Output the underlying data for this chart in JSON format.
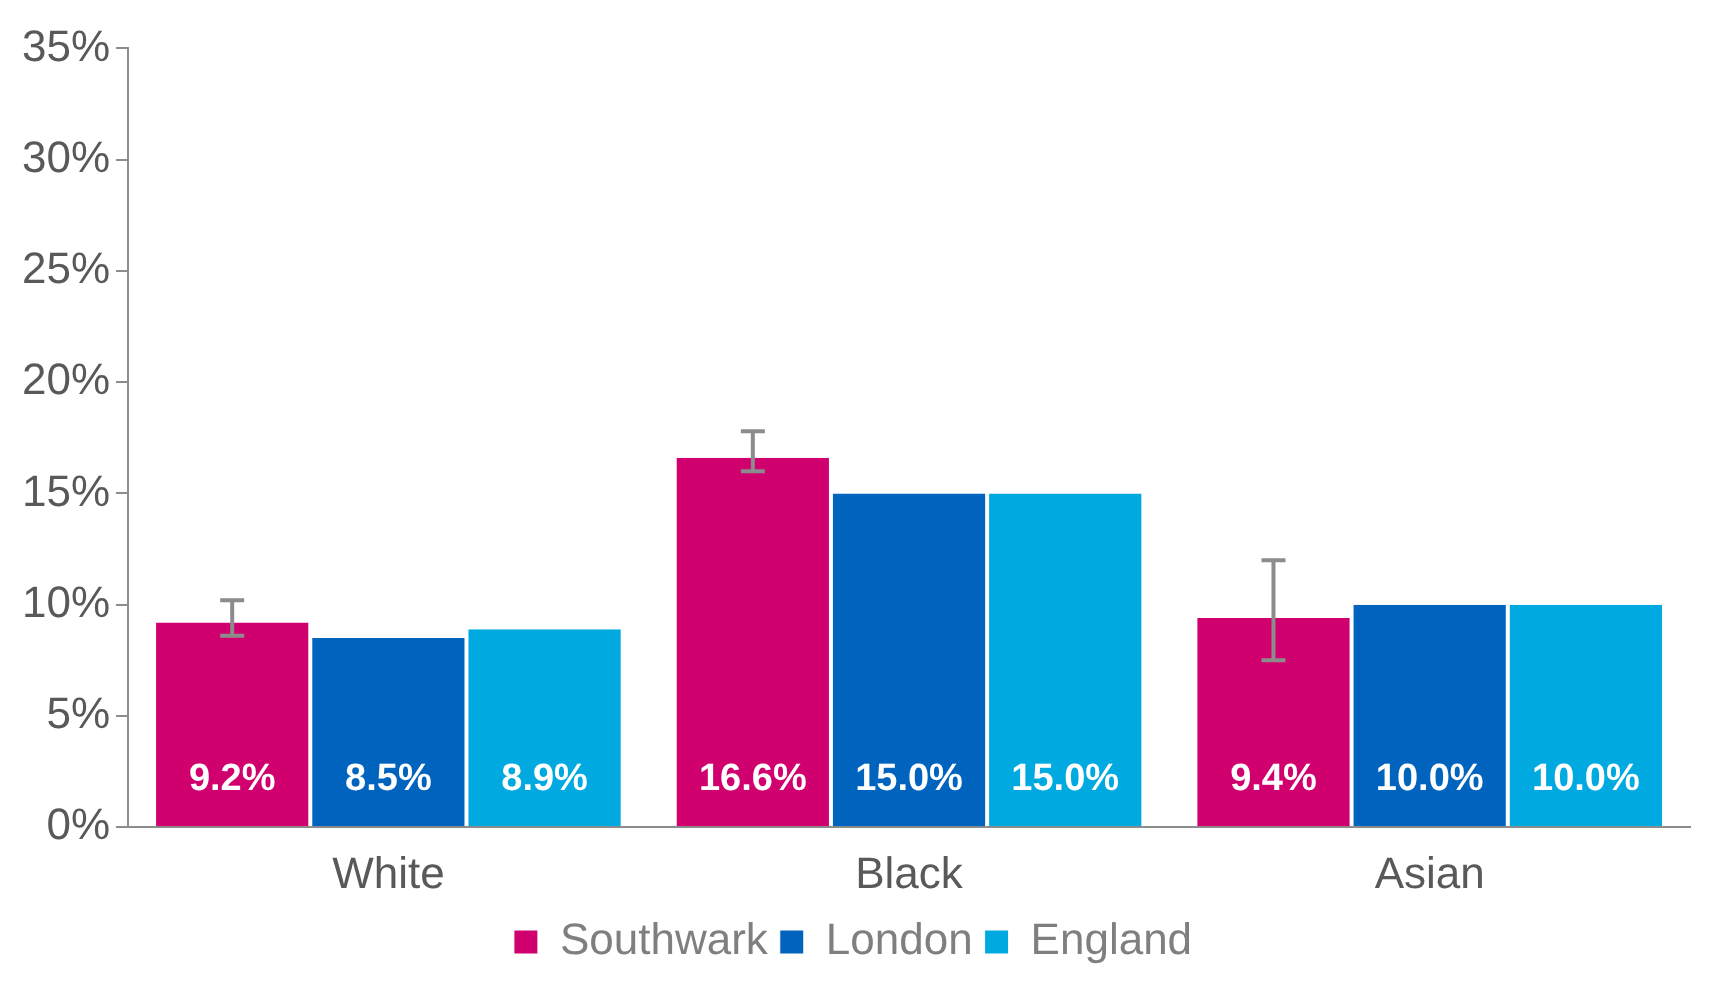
{
  "chart_data": {
    "type": "bar",
    "categories": [
      "White",
      "Black",
      "Asian"
    ],
    "series": [
      {
        "name": "Southwark",
        "color": "#d0006f",
        "values": [
          9.2,
          16.6,
          9.4
        ],
        "value_labels": [
          "9.2%",
          "16.6%",
          "9.4%"
        ],
        "errors": [
          [
            8.6,
            10.2
          ],
          [
            16.0,
            17.8
          ],
          [
            7.5,
            12.0
          ]
        ]
      },
      {
        "name": "London",
        "color": "#0063be",
        "values": [
          8.5,
          15.0,
          10.0
        ],
        "value_labels": [
          "8.5%",
          "15.0%",
          "10.0%"
        ]
      },
      {
        "name": "England",
        "color": "#00a9e0",
        "values": [
          8.9,
          15.0,
          10.0
        ],
        "value_labels": [
          "8.9%",
          "15.0%",
          "10.0%"
        ]
      }
    ],
    "ylim": [
      0,
      35
    ],
    "yticks": [
      {
        "value": 0,
        "label": "0%"
      },
      {
        "value": 5,
        "label": "5%"
      },
      {
        "value": 10,
        "label": "10%"
      },
      {
        "value": 15,
        "label": "15%"
      },
      {
        "value": 20,
        "label": "20%"
      },
      {
        "value": 25,
        "label": "25%"
      },
      {
        "value": 30,
        "label": "30%"
      },
      {
        "value": 35,
        "label": "35%"
      }
    ],
    "grid": false,
    "legend": "bottom"
  }
}
